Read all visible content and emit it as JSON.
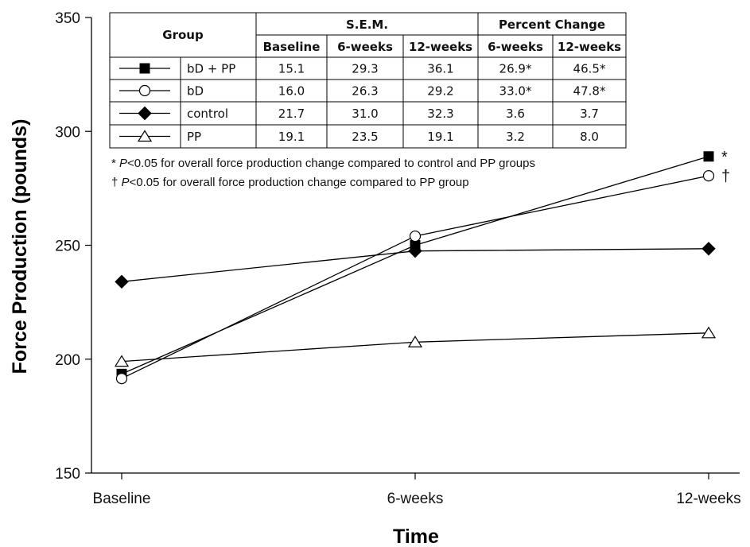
{
  "chart_data": {
    "type": "line",
    "categories": [
      "Baseline",
      "6-weeks",
      "12-weeks"
    ],
    "xlabel": "Time",
    "ylabel": "Force Production (pounds)",
    "ylim": [
      150,
      350
    ],
    "yticks": [
      150,
      200,
      250,
      300,
      350
    ],
    "series": [
      {
        "name": "bD + PP",
        "marker": "filled-square",
        "values": [
          193.5,
          250,
          289
        ],
        "end_label": "*"
      },
      {
        "name": "bD",
        "marker": "open-circle",
        "values": [
          191.5,
          254,
          280.5
        ],
        "end_label": "†"
      },
      {
        "name": "control",
        "marker": "filled-diamond",
        "values": [
          234,
          247.5,
          248.5
        ],
        "end_label": ""
      },
      {
        "name": "PP",
        "marker": "open-triangle",
        "values": [
          199,
          207.5,
          211.5
        ],
        "end_label": ""
      }
    ],
    "table": {
      "group_header": "Group",
      "sem_header": "S.E.M.",
      "pct_header": "Percent Change",
      "sub_headers": [
        "Baseline",
        "6-weeks",
        "12-weeks",
        "6-weeks",
        "12-weeks"
      ],
      "rows": [
        {
          "name": "bD + PP",
          "cells": [
            "15.1",
            "29.3",
            "36.1",
            "26.9*",
            "46.5*"
          ]
        },
        {
          "name": "bD",
          "cells": [
            "16.0",
            "26.3",
            "29.2",
            "33.0*",
            "47.8*"
          ]
        },
        {
          "name": "control",
          "cells": [
            "21.7",
            "31.0",
            "32.3",
            "3.6",
            "3.7"
          ]
        },
        {
          "name": "PP",
          "cells": [
            "19.1",
            "23.5",
            "19.1",
            "3.2",
            "8.0"
          ]
        }
      ]
    },
    "notes": [
      {
        "symbol": "* ",
        "p": "P",
        "text": "<0.05 for overall  force production change compared to control and PP groups"
      },
      {
        "symbol": "† ",
        "p": "P",
        "text": "<0.05 for overall force production change compared to PP group"
      }
    ]
  }
}
